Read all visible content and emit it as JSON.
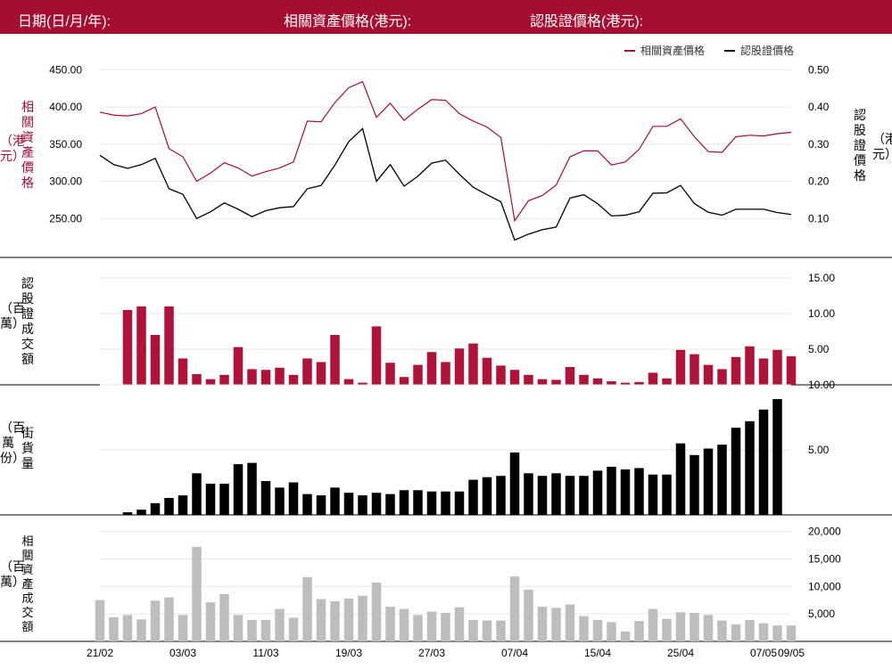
{
  "header": {
    "date_label": "日期(日/月/年):",
    "underlying_label": "相關資產價格(港元):",
    "warrant_label": "認股證價格(港元):",
    "bg_color": "#a50d31"
  },
  "colors": {
    "underlying": "#a50d31",
    "warrant": "#000000",
    "vol_bar": "#b0123a",
    "os_bar": "#000000",
    "und_vol_bar": "#bdbdbd"
  },
  "chart_data": [
    {
      "type": "line",
      "legend": [
        "相關資產價格",
        "認股證價格"
      ],
      "legend_position": "top-right",
      "left_axis": {
        "ticks": [
          "450.00",
          "400.00",
          "350.00",
          "300.00",
          "250.00"
        ],
        "title": "相關資產價格",
        "unit": "（港元）",
        "range": [
          230,
          460
        ]
      },
      "right_axis": {
        "ticks": [
          "0.50",
          "0.40",
          "0.30",
          "0.20",
          "0.10"
        ],
        "title": "認股證價格",
        "unit": "（港元）",
        "range": [
          0.06,
          0.52
        ]
      },
      "series": [
        {
          "name": "相關資產價格",
          "axis": "left",
          "values": [
            393,
            389,
            388,
            391,
            400,
            344,
            333,
            300,
            311,
            325,
            318,
            307,
            313,
            318,
            326,
            381,
            380,
            406,
            426,
            434,
            386,
            405,
            382,
            397,
            410,
            409,
            391,
            381,
            373,
            359,
            247,
            274,
            281,
            295,
            333,
            341,
            341,
            322,
            326,
            343,
            374,
            374,
            384,
            360,
            340,
            339,
            360,
            362,
            361,
            364,
            366
          ]
        },
        {
          "name": "認股證價格",
          "axis": "right",
          "values": [
            0.27,
            0.245,
            0.235,
            0.245,
            0.262,
            0.18,
            0.165,
            0.1,
            0.118,
            0.142,
            0.125,
            0.105,
            0.121,
            0.129,
            0.132,
            0.18,
            0.189,
            0.244,
            0.307,
            0.342,
            0.2,
            0.245,
            0.187,
            0.214,
            0.249,
            0.257,
            0.219,
            0.184,
            0.164,
            0.145,
            0.042,
            0.058,
            0.07,
            0.077,
            0.155,
            0.164,
            0.14,
            0.107,
            0.109,
            0.118,
            0.168,
            0.169,
            0.189,
            0.14,
            0.117,
            0.109,
            0.125,
            0.125,
            0.125,
            0.116,
            0.111
          ]
        }
      ]
    },
    {
      "type": "bar",
      "title": "認股證成交額",
      "unit": "（百萬）",
      "axis_ticks": [
        "15.00",
        "10.00",
        "5.00"
      ],
      "range": [
        0,
        18
      ],
      "values": [
        0,
        0,
        10.5,
        11,
        7,
        11,
        3.7,
        1.5,
        0.8,
        1.4,
        5.3,
        2.2,
        2.1,
        2.4,
        1.4,
        3.7,
        3.2,
        7,
        0.8,
        0.3,
        8.2,
        3.1,
        1.1,
        2.8,
        4.6,
        3.2,
        5.1,
        5.8,
        3.8,
        2.7,
        2.1,
        1.4,
        0.8,
        0.7,
        2.5,
        1.4,
        0.9,
        0.5,
        0.3,
        0.4,
        1.7,
        0.9,
        4.9,
        4.3,
        2.8,
        2.2,
        3.9,
        5.4,
        3.7,
        4.9,
        4
      ]
    },
    {
      "type": "bar",
      "title": "街貨量",
      "unit": "（百萬份）",
      "axis_ticks": [
        "10.00",
        "5.00"
      ],
      "range": [
        0,
        10
      ],
      "values": [
        0,
        0,
        0.2,
        0.4,
        0.9,
        1.3,
        1.5,
        3.2,
        2.4,
        2.4,
        3.9,
        4.0,
        2.6,
        2.1,
        2.5,
        1.6,
        1.5,
        2.1,
        1.7,
        1.5,
        1.7,
        1.6,
        1.9,
        1.9,
        1.8,
        1.8,
        1.8,
        2.7,
        2.9,
        3.0,
        4.8,
        3.2,
        3.0,
        3.2,
        3.0,
        3.0,
        3.4,
        3.7,
        3.5,
        3.6,
        3.1,
        3.1,
        5.5,
        4.6,
        5.1,
        5.4,
        6.7,
        7.2,
        8.1,
        8.9,
        0
      ]
    },
    {
      "type": "bar",
      "title": "相關資產成交額",
      "unit": "（百萬）",
      "axis_ticks": [
        "20,000",
        "15,000",
        "10,000",
        "5,000"
      ],
      "range": [
        0,
        23000
      ],
      "values": [
        7500,
        4400,
        4800,
        4000,
        7400,
        8000,
        4800,
        17200,
        7100,
        8600,
        4800,
        3900,
        3900,
        5900,
        4300,
        11700,
        7700,
        7300,
        7800,
        8300,
        10700,
        6300,
        5900,
        4800,
        5400,
        5200,
        6200,
        3900,
        3800,
        3800,
        11800,
        9400,
        6300,
        6100,
        6700,
        4600,
        3900,
        3500,
        1800,
        3700,
        5900,
        4100,
        5300,
        5200,
        4800,
        3800,
        3100,
        3900,
        3300,
        2900,
        2900
      ],
      "x_ticks": [
        "21/02",
        "03/03",
        "11/03",
        "19/03",
        "27/03",
        "07/04",
        "15/04",
        "25/04",
        "07/05",
        "09/05"
      ]
    }
  ]
}
